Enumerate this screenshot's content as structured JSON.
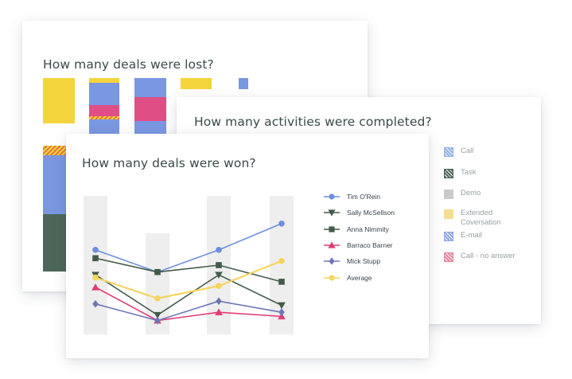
{
  "colors": {
    "yellow": "#f3d43c",
    "blue": "#7a97e2",
    "pink": "#df4f86",
    "dark_green": "#4e6659",
    "grey_band": "#eeeeee",
    "series_blue": "#6e8fe0",
    "series_dark_green": "#435b4a",
    "series_pink": "#e23b74",
    "series_indigo": "#6e75b7",
    "series_yellow": "#f6d45e"
  },
  "lost_card": {
    "title": "How many deals were lost?"
  },
  "activities_card": {
    "title": "How many activities were completed?",
    "legend": [
      {
        "label": "Call",
        "color": "#8fb1e8",
        "icon": "hatched-square-icon"
      },
      {
        "label": "Task",
        "color": "#4e6659",
        "icon": "hatched-square-icon"
      },
      {
        "label": "Demo",
        "color": "#c9cbcc",
        "icon": "square-icon"
      },
      {
        "label": "Extended Coversation",
        "color": "#f6dd93",
        "icon": "square-icon"
      },
      {
        "label": "E-mail",
        "color": "#8fa6e6",
        "icon": "hatched-square-icon"
      },
      {
        "label": "Call - no answer",
        "color": "#e3889e",
        "icon": "hatched-square-icon"
      }
    ]
  },
  "won_card": {
    "title": "How many deals were won?"
  },
  "chart_data": {
    "type": "line",
    "x": [
      1,
      2,
      3,
      4
    ],
    "series": [
      {
        "name": "Tim O'Rein",
        "values": [
          6.1,
          4.5,
          6.1,
          8.0
        ],
        "color": "#6e8fe0",
        "marker": "circle"
      },
      {
        "name": "Sally McSellson",
        "values": [
          4.3,
          1.4,
          4.3,
          2.1
        ],
        "color": "#435b4a",
        "marker": "triangle-down"
      },
      {
        "name": "Anna Nimmity",
        "values": [
          5.5,
          4.5,
          5.0,
          3.8
        ],
        "color": "#435b4a",
        "marker": "square"
      },
      {
        "name": "Barraco Barner",
        "values": [
          3.4,
          1.0,
          1.6,
          1.3
        ],
        "color": "#e23b74",
        "marker": "triangle-up"
      },
      {
        "name": "Mick Stupp",
        "values": [
          2.2,
          1.0,
          2.4,
          1.6
        ],
        "color": "#6e75b7",
        "marker": "diamond"
      },
      {
        "name": "Average",
        "values": [
          4.1,
          2.6,
          3.5,
          5.3
        ],
        "color": "#f6d45e",
        "marker": "circle"
      }
    ],
    "background_bars": [
      10,
      7.3,
      10,
      10
    ],
    "ylim": [
      0,
      10
    ],
    "grid": false,
    "legend": "right"
  }
}
